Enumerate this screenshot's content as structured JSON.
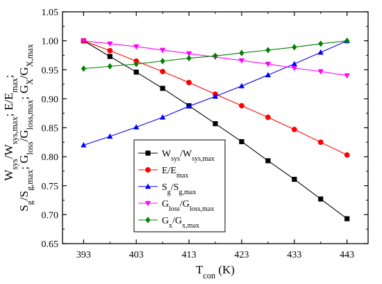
{
  "chart_data": {
    "type": "line",
    "x": [
      393,
      398,
      403,
      408,
      413,
      418,
      423,
      428,
      433,
      438,
      443
    ],
    "xticks": [
      "393",
      "403",
      "413",
      "423",
      "433",
      "443"
    ],
    "xtick_values": [
      393,
      403,
      413,
      423,
      433,
      443
    ],
    "yticks": [
      "0.65",
      "0.70",
      "0.75",
      "0.80",
      "0.85",
      "0.90",
      "0.95",
      "1.00",
      "1.05"
    ],
    "ytick_values": [
      0.65,
      0.7,
      0.75,
      0.8,
      0.85,
      0.9,
      0.95,
      1.0,
      1.05
    ],
    "xlim": [
      389,
      447
    ],
    "ylim": [
      0.65,
      1.05
    ],
    "xlabel": {
      "main": "T",
      "sub": "con",
      "tail": " (K)"
    },
    "ylabel_line1": [
      {
        "t": "W"
      },
      {
        "t": "sys",
        "sub": true
      },
      {
        "t": "/W"
      },
      {
        "t": "sys,max",
        "sub": true
      },
      {
        "t": "; E/E"
      },
      {
        "t": "max",
        "sub": true
      },
      {
        "t": ";"
      }
    ],
    "ylabel_line2": [
      {
        "t": "S"
      },
      {
        "t": "g",
        "sub": true
      },
      {
        "t": "/S"
      },
      {
        "t": "g,max",
        "sub": true
      },
      {
        "t": "; G"
      },
      {
        "t": "loss",
        "sub": true
      },
      {
        "t": "/G"
      },
      {
        "t": "loss,max",
        "sub": true
      },
      {
        "t": "; G"
      },
      {
        "t": "X",
        "sub": true
      },
      {
        "t": "/G"
      },
      {
        "t": "X,max",
        "sub": true
      }
    ],
    "legend_position": "lower-center",
    "grid": false,
    "series": [
      {
        "key": "wsys",
        "color": "#000000",
        "marker": "square",
        "label": [
          {
            "t": "W"
          },
          {
            "t": "sys",
            "sub": true
          },
          {
            "t": "/W"
          },
          {
            "t": "sys,max",
            "sub": true
          }
        ],
        "values": [
          1.0,
          0.973,
          0.946,
          0.918,
          0.888,
          0.857,
          0.826,
          0.793,
          0.761,
          0.727,
          0.693
        ]
      },
      {
        "key": "e",
        "color": "#ff0000",
        "marker": "circle",
        "label": [
          {
            "t": "E/E"
          },
          {
            "t": "max",
            "sub": true
          }
        ],
        "values": [
          1.0,
          0.983,
          0.965,
          0.947,
          0.928,
          0.908,
          0.888,
          0.868,
          0.847,
          0.825,
          0.803
        ]
      },
      {
        "key": "sg",
        "color": "#0000ff",
        "marker": "triangle-up",
        "label": [
          {
            "t": "S"
          },
          {
            "t": "g",
            "sub": true
          },
          {
            "t": "/S"
          },
          {
            "t": "g,max",
            "sub": true
          }
        ],
        "values": [
          0.82,
          0.835,
          0.851,
          0.868,
          0.887,
          0.904,
          0.922,
          0.941,
          0.96,
          0.98,
          1.0
        ]
      },
      {
        "key": "gloss",
        "color": "#ff00ff",
        "marker": "triangle-down",
        "label": [
          {
            "t": "G"
          },
          {
            "t": "loss",
            "sub": true
          },
          {
            "t": "/G"
          },
          {
            "t": "loss,max",
            "sub": true
          }
        ],
        "values": [
          1.0,
          0.995,
          0.99,
          0.984,
          0.978,
          0.972,
          0.966,
          0.96,
          0.953,
          0.947,
          0.94
        ]
      },
      {
        "key": "gx",
        "color": "#008000",
        "marker": "diamond",
        "label": [
          {
            "t": "G"
          },
          {
            "t": "x",
            "sub": true
          },
          {
            "t": "/G"
          },
          {
            "t": "x,max",
            "sub": true
          }
        ],
        "values": [
          0.952,
          0.956,
          0.96,
          0.965,
          0.97,
          0.974,
          0.979,
          0.984,
          0.989,
          0.995,
          1.0
        ]
      }
    ]
  }
}
